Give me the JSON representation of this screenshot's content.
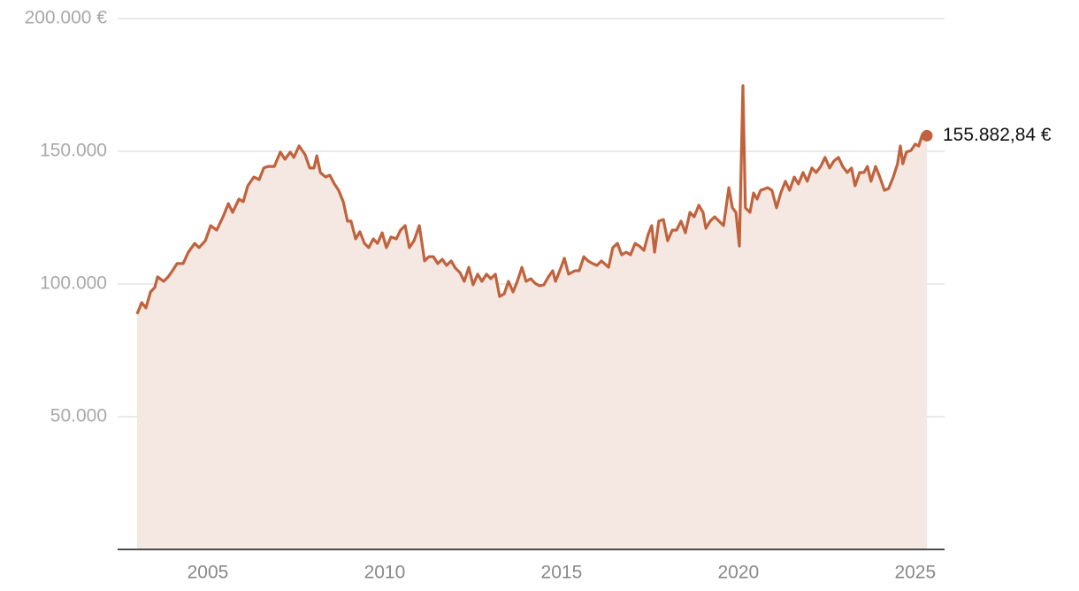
{
  "chart_data": {
    "type": "area",
    "x": [
      2003,
      2003.13,
      2003.25,
      2003.38,
      2003.5,
      2003.58,
      2003.75,
      2003.88,
      2004,
      2004.13,
      2004.3,
      2004.45,
      2004.63,
      2004.75,
      2004.93,
      2005.08,
      2005.25,
      2005.43,
      2005.58,
      2005.7,
      2005.88,
      2006,
      2006.13,
      2006.3,
      2006.45,
      2006.58,
      2006.7,
      2006.88,
      2007.05,
      2007.18,
      2007.33,
      2007.43,
      2007.58,
      2007.75,
      2007.88,
      2008,
      2008.08,
      2008.18,
      2008.33,
      2008.45,
      2008.58,
      2008.7,
      2008.83,
      2008.95,
      2009.05,
      2009.18,
      2009.3,
      2009.43,
      2009.55,
      2009.68,
      2009.8,
      2009.93,
      2010.05,
      2010.18,
      2010.33,
      2010.45,
      2010.58,
      2010.7,
      2010.83,
      2010.98,
      2011.13,
      2011.25,
      2011.38,
      2011.5,
      2011.63,
      2011.75,
      2011.88,
      2012,
      2012.13,
      2012.25,
      2012.38,
      2012.5,
      2012.63,
      2012.75,
      2012.88,
      2013,
      2013.13,
      2013.25,
      2013.38,
      2013.5,
      2013.63,
      2013.75,
      2013.88,
      2014,
      2014.13,
      2014.25,
      2014.38,
      2014.5,
      2014.63,
      2014.75,
      2014.83,
      2014.95,
      2015.08,
      2015.2,
      2015.38,
      2015.5,
      2015.63,
      2015.75,
      2015.88,
      2016,
      2016.13,
      2016.33,
      2016.45,
      2016.58,
      2016.7,
      2016.83,
      2016.95,
      2017.08,
      2017.2,
      2017.33,
      2017.45,
      2017.55,
      2017.63,
      2017.75,
      2017.88,
      2018,
      2018.13,
      2018.25,
      2018.38,
      2018.5,
      2018.63,
      2018.75,
      2018.88,
      2019,
      2019.08,
      2019.2,
      2019.33,
      2019.45,
      2019.58,
      2019.73,
      2019.83,
      2019.93,
      2020.03,
      2020.13,
      2020.2,
      2020.33,
      2020.43,
      2020.53,
      2020.63,
      2020.83,
      2020.95,
      2021.08,
      2021.2,
      2021.33,
      2021.45,
      2021.58,
      2021.7,
      2021.83,
      2021.95,
      2022.08,
      2022.2,
      2022.33,
      2022.45,
      2022.58,
      2022.7,
      2022.83,
      2022.95,
      2023.08,
      2023.2,
      2023.3,
      2023.43,
      2023.55,
      2023.65,
      2023.75,
      2023.88,
      2024,
      2024.13,
      2024.25,
      2024.38,
      2024.5,
      2024.58,
      2024.65,
      2024.75,
      2024.88,
      2025,
      2025.1,
      2025.2,
      2025.33
    ],
    "values": [
      88700,
      93000,
      91000,
      97000,
      98700,
      102700,
      101000,
      102700,
      105000,
      107700,
      107700,
      112000,
      115300,
      113700,
      116300,
      122000,
      120300,
      125300,
      130300,
      127000,
      132000,
      131000,
      137000,
      140300,
      139300,
      143700,
      144300,
      144300,
      149700,
      147000,
      149700,
      147700,
      152000,
      148700,
      143700,
      143700,
      148300,
      142000,
      140300,
      141000,
      137700,
      135300,
      131000,
      123700,
      123700,
      117000,
      119700,
      115300,
      113700,
      117000,
      115300,
      119300,
      113700,
      117700,
      117000,
      120300,
      122000,
      113700,
      116300,
      122000,
      108700,
      110300,
      110300,
      107700,
      109300,
      107000,
      108700,
      106000,
      104300,
      101000,
      106300,
      99700,
      103700,
      101000,
      103700,
      102000,
      103700,
      95300,
      96300,
      101000,
      97000,
      101000,
      106300,
      101000,
      102000,
      100300,
      99300,
      99700,
      102700,
      105000,
      101000,
      105000,
      109700,
      103700,
      105000,
      105000,
      110300,
      108700,
      107700,
      107000,
      108700,
      106300,
      113700,
      115300,
      111000,
      112000,
      111000,
      115300,
      114300,
      112700,
      118700,
      122000,
      112000,
      123700,
      124300,
      116300,
      120300,
      120300,
      123700,
      119300,
      127000,
      125300,
      129700,
      127000,
      121000,
      123700,
      125300,
      123700,
      122000,
      136300,
      128700,
      127000,
      114300,
      174700,
      128700,
      127000,
      134300,
      132000,
      135300,
      136300,
      135300,
      128700,
      134300,
      138700,
      135300,
      140300,
      137700,
      142000,
      138700,
      143700,
      142000,
      144300,
      147700,
      143700,
      146300,
      147700,
      144300,
      142000,
      143700,
      137000,
      142000,
      142000,
      144300,
      138700,
      144300,
      140300,
      135300,
      136000,
      140300,
      145300,
      152000,
      145300,
      149700,
      150300,
      152700,
      152000,
      156300,
      155882.84
    ],
    "value_labels": [
      null,
      null,
      null,
      null,
      null,
      null,
      null,
      null,
      null,
      null,
      null,
      null,
      null,
      null,
      null,
      null,
      null,
      null,
      null,
      null,
      null,
      null,
      null,
      null,
      null,
      null,
      null,
      null,
      null,
      null,
      null,
      null,
      null,
      null,
      null,
      null,
      null,
      null,
      null,
      null,
      null,
      null,
      null,
      null,
      null,
      null,
      null,
      null,
      null,
      null,
      null,
      null,
      null,
      null,
      null,
      null,
      null,
      null,
      null,
      null,
      null,
      null,
      null,
      null,
      null,
      null,
      null,
      null,
      null,
      null,
      null,
      null,
      null,
      null,
      null,
      null,
      null,
      null,
      null,
      null,
      null,
      null,
      null,
      null,
      null,
      null,
      null,
      null,
      null,
      null,
      null,
      null,
      null,
      null,
      null,
      null,
      null,
      null,
      null,
      null,
      null,
      null,
      null,
      null,
      null,
      null,
      null,
      null,
      null,
      null,
      null,
      null,
      null,
      null,
      null,
      null,
      null,
      null,
      null,
      null,
      null,
      null,
      null,
      null,
      null,
      null,
      null,
      null,
      null,
      null,
      null,
      null,
      null,
      null,
      null,
      null,
      null,
      null,
      null,
      null,
      null,
      null,
      null,
      null,
      null,
      null,
      null,
      null,
      null,
      null,
      null,
      null,
      null,
      null,
      null,
      null,
      null,
      null,
      null,
      null,
      null,
      null,
      null,
      null,
      null,
      null,
      null,
      null,
      null,
      null,
      null,
      null,
      null,
      null,
      null,
      null,
      null,
      "155.882,84 €"
    ],
    "color": "#c0633d",
    "fill_color": "#f5e7e1",
    "xlim": [
      2002.45,
      2025.83
    ],
    "xticks": [
      2005,
      2010,
      2015,
      2020,
      2025
    ],
    "ylim": [
      0,
      200000
    ],
    "yticks": [
      {
        "value": 50000,
        "label": "50.000"
      },
      {
        "value": 100000,
        "label": "100.000"
      },
      {
        "value": 150000,
        "label": "150.000"
      },
      {
        "value": 200000,
        "label": "200.000 €"
      }
    ],
    "grid": true
  }
}
